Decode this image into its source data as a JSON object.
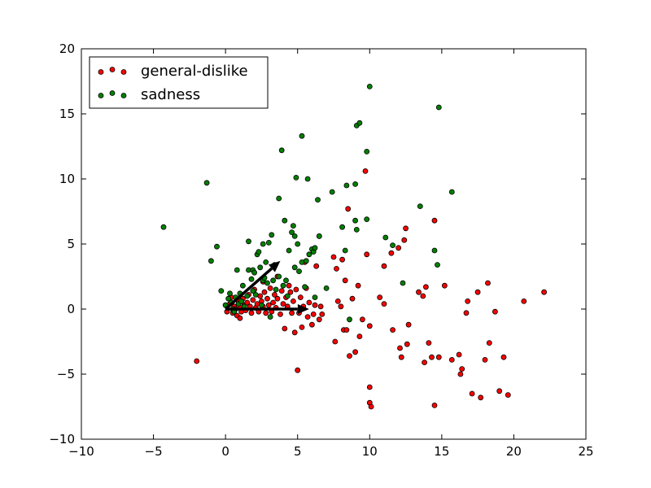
{
  "chart_data": {
    "type": "scatter",
    "title": "",
    "xlabel": "",
    "ylabel": "",
    "xlim": [
      -10,
      25
    ],
    "ylim": [
      -10,
      20
    ],
    "xticks": [
      -10,
      -5,
      0,
      5,
      10,
      15,
      20,
      25
    ],
    "yticks": [
      -10,
      -5,
      0,
      5,
      10,
      15,
      20
    ],
    "grid": false,
    "legend_position": "top-left",
    "series": [
      {
        "name": "general-dislike",
        "color": "#ff0000",
        "points": [
          [
            -2.0,
            -4.0
          ],
          [
            0.1,
            -0.2
          ],
          [
            0.3,
            0.4
          ],
          [
            0.5,
            -0.3
          ],
          [
            0.4,
            0.9
          ],
          [
            0.6,
            0.2
          ],
          [
            0.8,
            -0.5
          ],
          [
            0.9,
            0.6
          ],
          [
            1.0,
            0.1
          ],
          [
            1.1,
            -0.2
          ],
          [
            1.2,
            0.8
          ],
          [
            1.3,
            0.3
          ],
          [
            1.4,
            -0.1
          ],
          [
            1.5,
            0.5
          ],
          [
            1.6,
            1.1
          ],
          [
            1.7,
            0.2
          ],
          [
            1.8,
            -0.3
          ],
          [
            1.9,
            0.7
          ],
          [
            2.0,
            1.5
          ],
          [
            2.1,
            0.1
          ],
          [
            2.2,
            0.4
          ],
          [
            2.3,
            -0.2
          ],
          [
            2.4,
            1.0
          ],
          [
            2.5,
            0.6
          ],
          [
            2.6,
            0.2
          ],
          [
            2.7,
            1.3
          ],
          [
            2.8,
            -0.3
          ],
          [
            2.9,
            0.8
          ],
          [
            3.0,
            0.3
          ],
          [
            3.1,
            1.6
          ],
          [
            3.2,
            -0.2
          ],
          [
            3.3,
            0.5
          ],
          [
            3.4,
            1.1
          ],
          [
            3.5,
            0.1
          ],
          [
            3.6,
            0.8
          ],
          [
            3.8,
            -0.4
          ],
          [
            3.9,
            1.4
          ],
          [
            4.0,
            0.4
          ],
          [
            4.1,
            -1.5
          ],
          [
            4.2,
            0.9
          ],
          [
            4.3,
            0.2
          ],
          [
            4.5,
            1.3
          ],
          [
            4.6,
            -0.3
          ],
          [
            4.7,
            0.6
          ],
          [
            4.8,
            -1.8
          ],
          [
            4.9,
            1.5
          ],
          [
            5.0,
            -4.7
          ],
          [
            5.1,
            -0.3
          ],
          [
            5.2,
            0.9
          ],
          [
            5.3,
            -1.4
          ],
          [
            5.4,
            0.2
          ],
          [
            5.5,
            3.6
          ],
          [
            5.6,
            1.6
          ],
          [
            5.7,
            -0.6
          ],
          [
            5.8,
            0.5
          ],
          [
            6.0,
            -1.2
          ],
          [
            6.1,
            -0.4
          ],
          [
            6.2,
            0.3
          ],
          [
            6.3,
            3.3
          ],
          [
            6.5,
            -0.8
          ],
          [
            6.6,
            0.2
          ],
          [
            6.7,
            -0.4
          ],
          [
            6.5,
            5.6
          ],
          [
            7.5,
            4.0
          ],
          [
            7.7,
            3.1
          ],
          [
            7.8,
            0.6
          ],
          [
            7.6,
            -2.5
          ],
          [
            8.0,
            0.2
          ],
          [
            8.1,
            3.8
          ],
          [
            8.2,
            -1.6
          ],
          [
            8.3,
            2.2
          ],
          [
            8.4,
            -1.6
          ],
          [
            8.5,
            7.7
          ],
          [
            8.6,
            -3.6
          ],
          [
            8.8,
            0.8
          ],
          [
            9.0,
            -3.3
          ],
          [
            9.2,
            1.8
          ],
          [
            9.3,
            -2.1
          ],
          [
            9.5,
            -0.8
          ],
          [
            9.7,
            10.6
          ],
          [
            9.8,
            4.2
          ],
          [
            10.0,
            -1.3
          ],
          [
            10.0,
            -6.0
          ],
          [
            10.0,
            -7.2
          ],
          [
            10.1,
            -7.5
          ],
          [
            10.7,
            0.9
          ],
          [
            11.0,
            0.4
          ],
          [
            11.0,
            3.3
          ],
          [
            11.5,
            4.3
          ],
          [
            11.6,
            -1.6
          ],
          [
            12.0,
            4.7
          ],
          [
            12.1,
            -3.0
          ],
          [
            12.2,
            -3.7
          ],
          [
            12.4,
            5.3
          ],
          [
            12.5,
            6.2
          ],
          [
            12.6,
            -2.7
          ],
          [
            12.7,
            -1.2
          ],
          [
            13.4,
            1.3
          ],
          [
            13.7,
            1.0
          ],
          [
            13.8,
            -4.1
          ],
          [
            13.9,
            1.7
          ],
          [
            14.1,
            -2.6
          ],
          [
            14.3,
            -3.7
          ],
          [
            14.5,
            6.8
          ],
          [
            14.5,
            -7.4
          ],
          [
            14.8,
            -3.7
          ],
          [
            15.2,
            1.8
          ],
          [
            15.7,
            -3.9
          ],
          [
            16.2,
            -3.5
          ],
          [
            16.3,
            -5.0
          ],
          [
            16.4,
            -4.6
          ],
          [
            16.7,
            -0.3
          ],
          [
            16.8,
            0.6
          ],
          [
            17.1,
            -6.5
          ],
          [
            17.5,
            1.3
          ],
          [
            17.7,
            -6.8
          ],
          [
            18.0,
            -3.9
          ],
          [
            18.2,
            2.0
          ],
          [
            18.3,
            -2.6
          ],
          [
            18.7,
            -0.2
          ],
          [
            19.0,
            -6.3
          ],
          [
            19.3,
            -3.7
          ],
          [
            19.6,
            -6.6
          ],
          [
            20.7,
            0.6
          ],
          [
            22.1,
            1.3
          ],
          [
            1.0,
            -0.7
          ],
          [
            0.7,
            0.0
          ],
          [
            2.6,
            2.1
          ],
          [
            3.6,
            2.5
          ],
          [
            4.4,
            1.8
          ]
        ]
      },
      {
        "name": "sadness",
        "color": "#008000",
        "points": [
          [
            -4.3,
            6.3
          ],
          [
            -1.3,
            9.7
          ],
          [
            -1.0,
            3.7
          ],
          [
            -0.6,
            4.8
          ],
          [
            -0.3,
            1.4
          ],
          [
            0.0,
            0.3
          ],
          [
            0.2,
            0.8
          ],
          [
            0.3,
            1.2
          ],
          [
            0.4,
            0.5
          ],
          [
            0.5,
            0.0
          ],
          [
            0.7,
            0.9
          ],
          [
            0.8,
            3.0
          ],
          [
            0.9,
            0.4
          ],
          [
            1.0,
            1.2
          ],
          [
            1.1,
            0.6
          ],
          [
            1.2,
            1.8
          ],
          [
            1.5,
            1.0
          ],
          [
            1.6,
            3.0
          ],
          [
            1.6,
            5.2
          ],
          [
            1.8,
            2.3
          ],
          [
            1.9,
            3.0
          ],
          [
            2.0,
            2.8
          ],
          [
            2.1,
            1.1
          ],
          [
            2.2,
            4.2
          ],
          [
            2.3,
            4.4
          ],
          [
            2.4,
            3.2
          ],
          [
            2.6,
            5.0
          ],
          [
            2.6,
            2.2
          ],
          [
            2.7,
            2.4
          ],
          [
            2.8,
            3.6
          ],
          [
            2.9,
            2.0
          ],
          [
            3.0,
            5.1
          ],
          [
            3.1,
            -0.6
          ],
          [
            3.2,
            5.7
          ],
          [
            3.3,
            2.2
          ],
          [
            3.4,
            3.4
          ],
          [
            3.7,
            8.5
          ],
          [
            3.7,
            2.5
          ],
          [
            3.9,
            12.2
          ],
          [
            4.0,
            1.8
          ],
          [
            4.1,
            6.8
          ],
          [
            4.2,
            2.2
          ],
          [
            4.4,
            4.5
          ],
          [
            4.6,
            5.9
          ],
          [
            4.7,
            6.4
          ],
          [
            4.8,
            5.6
          ],
          [
            4.8,
            3.2
          ],
          [
            4.9,
            10.1
          ],
          [
            5.0,
            5.0
          ],
          [
            5.1,
            2.9
          ],
          [
            5.3,
            3.6
          ],
          [
            5.3,
            13.3
          ],
          [
            5.5,
            1.7
          ],
          [
            5.6,
            3.7
          ],
          [
            5.7,
            10.0
          ],
          [
            5.8,
            4.2
          ],
          [
            6.0,
            4.6
          ],
          [
            6.1,
            4.4
          ],
          [
            6.2,
            0.9
          ],
          [
            6.2,
            4.7
          ],
          [
            6.4,
            8.4
          ],
          [
            6.5,
            5.6
          ],
          [
            7.0,
            1.6
          ],
          [
            7.4,
            9.0
          ],
          [
            8.1,
            6.3
          ],
          [
            8.3,
            4.5
          ],
          [
            8.4,
            9.5
          ],
          [
            8.6,
            -0.8
          ],
          [
            9.0,
            9.6
          ],
          [
            9.0,
            6.8
          ],
          [
            9.1,
            6.1
          ],
          [
            9.1,
            14.1
          ],
          [
            9.3,
            14.3
          ],
          [
            9.8,
            12.1
          ],
          [
            9.8,
            6.9
          ],
          [
            10.0,
            17.1
          ],
          [
            11.1,
            5.5
          ],
          [
            11.6,
            4.9
          ],
          [
            12.3,
            2.0
          ],
          [
            13.5,
            7.9
          ],
          [
            14.5,
            4.5
          ],
          [
            14.7,
            3.4
          ],
          [
            14.8,
            15.5
          ],
          [
            15.7,
            9.0
          ],
          [
            1.3,
            0.2
          ],
          [
            0.6,
            -0.2
          ],
          [
            1.9,
            1.4
          ],
          [
            2.5,
            0.3
          ],
          [
            3.5,
            1.5
          ],
          [
            4.3,
            1.0
          ]
        ]
      }
    ],
    "arrows": [
      {
        "x": 0,
        "y": 0,
        "dx": 3.8,
        "dy": 3.7
      },
      {
        "x": 0,
        "y": 0,
        "dx": 5.8,
        "dy": 0.0
      }
    ]
  }
}
